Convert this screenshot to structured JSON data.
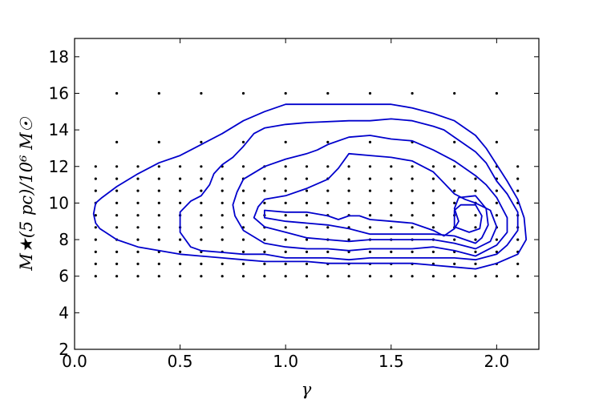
{
  "chart_data": {
    "type": "contour",
    "title": "",
    "xlabel": "γ",
    "ylabel": "M★(5 pc)/10⁶ M☉",
    "xlim": [
      0.0,
      2.2
    ],
    "ylim": [
      2,
      19
    ],
    "xticks": [
      0.0,
      0.5,
      1.0,
      1.5,
      2.0
    ],
    "xtick_labels": [
      "0.0",
      "0.5",
      "1.0",
      "1.5",
      "2.0"
    ],
    "yticks": [
      2,
      4,
      6,
      8,
      10,
      12,
      14,
      16,
      18
    ],
    "ytick_labels": [
      "2",
      "4",
      "6",
      "8",
      "10",
      "12",
      "14",
      "16",
      "18"
    ],
    "grid": false,
    "contour_color": "#0000cc",
    "point_color": "#000000",
    "sample_points": {
      "dense_x": [
        0.1,
        0.2,
        0.3,
        0.4,
        0.5,
        0.6,
        0.7,
        0.8,
        0.9,
        1.0,
        1.1,
        1.2,
        1.3,
        1.4,
        1.5,
        1.6,
        1.7,
        1.8,
        1.9,
        2.0,
        2.1
      ],
      "dense_y": [
        6.0,
        6.67,
        7.33,
        8.0,
        8.67,
        9.33,
        10.0,
        10.67,
        11.33,
        12.0
      ],
      "sparse_x": [
        0.2,
        0.4,
        0.6,
        0.8,
        1.0,
        1.2,
        1.4,
        1.6,
        1.8,
        2.0
      ],
      "sparse_y": [
        13.33,
        16.0
      ]
    },
    "contours": [
      {
        "level": 1,
        "points": [
          [
            0.1,
            8.9
          ],
          [
            0.09,
            9.4
          ],
          [
            0.1,
            10.0
          ],
          [
            0.13,
            10.3
          ],
          [
            0.2,
            10.9
          ],
          [
            0.3,
            11.6
          ],
          [
            0.4,
            12.2
          ],
          [
            0.5,
            12.6
          ],
          [
            0.6,
            13.2
          ],
          [
            0.7,
            13.8
          ],
          [
            0.8,
            14.5
          ],
          [
            0.9,
            15.0
          ],
          [
            1.0,
            15.4
          ],
          [
            1.2,
            15.4
          ],
          [
            1.4,
            15.4
          ],
          [
            1.5,
            15.4
          ],
          [
            1.6,
            15.2
          ],
          [
            1.7,
            14.9
          ],
          [
            1.8,
            14.5
          ],
          [
            1.9,
            13.7
          ],
          [
            1.95,
            13.0
          ],
          [
            2.0,
            12.1
          ],
          [
            2.05,
            11.2
          ],
          [
            2.1,
            10.2
          ],
          [
            2.13,
            9.2
          ],
          [
            2.14,
            8.0
          ],
          [
            2.1,
            7.2
          ],
          [
            2.0,
            6.7
          ],
          [
            1.9,
            6.4
          ],
          [
            1.8,
            6.5
          ],
          [
            1.7,
            6.6
          ],
          [
            1.6,
            6.7
          ],
          [
            1.5,
            6.7
          ],
          [
            1.4,
            6.7
          ],
          [
            1.3,
            6.7
          ],
          [
            1.2,
            6.7
          ],
          [
            1.1,
            6.8
          ],
          [
            1.0,
            6.8
          ],
          [
            0.9,
            6.8
          ],
          [
            0.8,
            6.9
          ],
          [
            0.7,
            7.0
          ],
          [
            0.6,
            7.1
          ],
          [
            0.5,
            7.2
          ],
          [
            0.4,
            7.4
          ],
          [
            0.3,
            7.6
          ],
          [
            0.2,
            8.0
          ],
          [
            0.12,
            8.6
          ],
          [
            0.1,
            8.9
          ]
        ]
      },
      {
        "level": 2,
        "points": [
          [
            0.5,
            8.4
          ],
          [
            0.5,
            9.5
          ],
          [
            0.55,
            10.1
          ],
          [
            0.6,
            10.4
          ],
          [
            0.64,
            11.0
          ],
          [
            0.66,
            11.6
          ],
          [
            0.7,
            12.1
          ],
          [
            0.75,
            12.5
          ],
          [
            0.8,
            13.1
          ],
          [
            0.85,
            13.8
          ],
          [
            0.9,
            14.1
          ],
          [
            1.0,
            14.3
          ],
          [
            1.1,
            14.4
          ],
          [
            1.3,
            14.5
          ],
          [
            1.4,
            14.5
          ],
          [
            1.5,
            14.6
          ],
          [
            1.6,
            14.5
          ],
          [
            1.7,
            14.2
          ],
          [
            1.75,
            14.0
          ],
          [
            1.8,
            13.6
          ],
          [
            1.9,
            12.8
          ],
          [
            1.95,
            12.2
          ],
          [
            2.0,
            11.2
          ],
          [
            2.05,
            10.5
          ],
          [
            2.1,
            9.5
          ],
          [
            2.1,
            8.5
          ],
          [
            2.05,
            7.7
          ],
          [
            2.0,
            7.2
          ],
          [
            1.9,
            6.9
          ],
          [
            1.8,
            7.0
          ],
          [
            1.7,
            7.0
          ],
          [
            1.6,
            7.0
          ],
          [
            1.5,
            7.0
          ],
          [
            1.4,
            7.0
          ],
          [
            1.3,
            6.9
          ],
          [
            1.2,
            7.0
          ],
          [
            1.1,
            7.0
          ],
          [
            1.0,
            7.0
          ],
          [
            0.9,
            7.2
          ],
          [
            0.8,
            7.2
          ],
          [
            0.7,
            7.3
          ],
          [
            0.6,
            7.4
          ],
          [
            0.55,
            7.6
          ],
          [
            0.5,
            8.4
          ]
        ]
      },
      {
        "level": 3,
        "points": [
          [
            0.75,
            9.9
          ],
          [
            0.77,
            10.6
          ],
          [
            0.8,
            11.3
          ],
          [
            0.9,
            12.0
          ],
          [
            1.0,
            12.4
          ],
          [
            1.1,
            12.7
          ],
          [
            1.15,
            12.9
          ],
          [
            1.2,
            13.2
          ],
          [
            1.3,
            13.6
          ],
          [
            1.4,
            13.7
          ],
          [
            1.5,
            13.5
          ],
          [
            1.6,
            13.4
          ],
          [
            1.7,
            12.9
          ],
          [
            1.8,
            12.3
          ],
          [
            1.9,
            11.5
          ],
          [
            1.95,
            11.0
          ],
          [
            2.0,
            10.3
          ],
          [
            2.05,
            9.2
          ],
          [
            2.05,
            8.4
          ],
          [
            2.0,
            7.7
          ],
          [
            1.9,
            7.1
          ],
          [
            1.8,
            7.4
          ],
          [
            1.7,
            7.6
          ],
          [
            1.6,
            7.5
          ],
          [
            1.5,
            7.5
          ],
          [
            1.4,
            7.5
          ],
          [
            1.3,
            7.4
          ],
          [
            1.2,
            7.5
          ],
          [
            1.1,
            7.5
          ],
          [
            1.0,
            7.6
          ],
          [
            0.9,
            7.8
          ],
          [
            0.8,
            8.5
          ],
          [
            0.76,
            9.3
          ],
          [
            0.75,
            9.9
          ]
        ]
      },
      {
        "level": 4,
        "points": [
          [
            0.85,
            9.2
          ],
          [
            0.87,
            9.8
          ],
          [
            0.9,
            10.2
          ],
          [
            1.0,
            10.4
          ],
          [
            1.1,
            10.8
          ],
          [
            1.2,
            11.3
          ],
          [
            1.25,
            11.9
          ],
          [
            1.3,
            12.7
          ],
          [
            1.4,
            12.6
          ],
          [
            1.5,
            12.5
          ],
          [
            1.6,
            12.3
          ],
          [
            1.7,
            11.7
          ],
          [
            1.75,
            11.1
          ],
          [
            1.8,
            10.5
          ],
          [
            1.85,
            10.2
          ],
          [
            1.9,
            10.0
          ],
          [
            1.97,
            9.6
          ],
          [
            2.0,
            8.7
          ],
          [
            1.97,
            7.9
          ],
          [
            1.9,
            7.5
          ],
          [
            1.8,
            7.8
          ],
          [
            1.7,
            8.0
          ],
          [
            1.6,
            8.0
          ],
          [
            1.5,
            8.0
          ],
          [
            1.4,
            8.0
          ],
          [
            1.3,
            7.9
          ],
          [
            1.2,
            8.0
          ],
          [
            1.1,
            8.1
          ],
          [
            1.0,
            8.4
          ],
          [
            0.9,
            8.7
          ],
          [
            0.85,
            9.2
          ]
        ]
      },
      {
        "level": 5,
        "points": [
          [
            0.9,
            9.2
          ],
          [
            0.9,
            9.6
          ],
          [
            1.0,
            9.5
          ],
          [
            1.1,
            9.5
          ],
          [
            1.2,
            9.3
          ],
          [
            1.25,
            9.1
          ],
          [
            1.3,
            9.3
          ],
          [
            1.35,
            9.3
          ],
          [
            1.4,
            9.1
          ],
          [
            1.5,
            9.0
          ],
          [
            1.6,
            8.9
          ],
          [
            1.7,
            8.5
          ],
          [
            1.75,
            8.2
          ],
          [
            1.8,
            8.6
          ],
          [
            1.82,
            9.0
          ],
          [
            1.8,
            9.7
          ],
          [
            1.82,
            10.3
          ],
          [
            1.9,
            10.4
          ],
          [
            1.95,
            9.7
          ],
          [
            1.96,
            8.8
          ],
          [
            1.93,
            8.1
          ],
          [
            1.9,
            7.8
          ],
          [
            1.8,
            8.2
          ],
          [
            1.7,
            8.3
          ],
          [
            1.6,
            8.3
          ],
          [
            1.5,
            8.3
          ],
          [
            1.4,
            8.3
          ],
          [
            1.3,
            8.6
          ],
          [
            1.2,
            8.8
          ],
          [
            1.1,
            8.9
          ],
          [
            1.0,
            9.0
          ],
          [
            0.9,
            9.2
          ]
        ]
      },
      {
        "level": 6,
        "points": [
          [
            1.8,
            9.0
          ],
          [
            1.8,
            9.6
          ],
          [
            1.83,
            9.9
          ],
          [
            1.9,
            9.9
          ],
          [
            1.93,
            9.3
          ],
          [
            1.92,
            8.6
          ],
          [
            1.87,
            8.4
          ],
          [
            1.8,
            8.7
          ],
          [
            1.8,
            9.0
          ]
        ]
      }
    ]
  }
}
